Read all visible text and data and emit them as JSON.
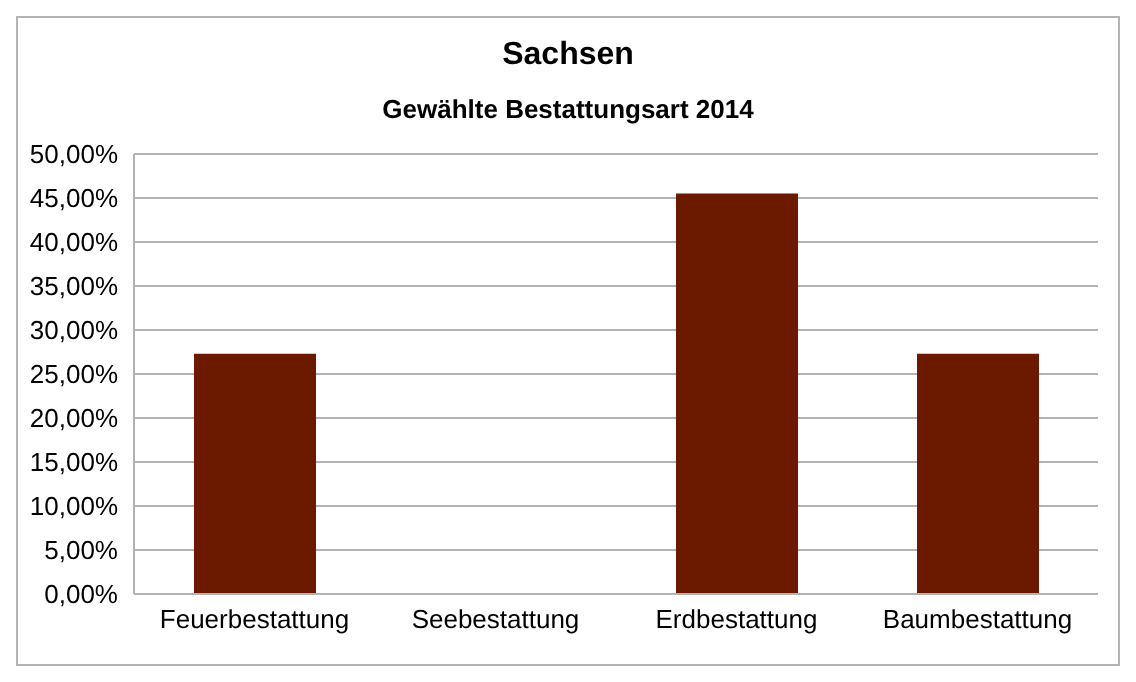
{
  "chart_data": {
    "type": "bar",
    "title": "Sachsen",
    "subtitle": "Gewählte Bestattungsart 2014",
    "categories": [
      "Feuerbestattung",
      "Seebestattung",
      "Erdbestattung",
      "Baumbestattung"
    ],
    "values": [
      27.3,
      0,
      45.5,
      27.3
    ],
    "color": "#6b1a00",
    "ylim": [
      0,
      50
    ],
    "yticks": [
      {
        "value": 0,
        "label": "0,00%"
      },
      {
        "value": 5,
        "label": "5,00%"
      },
      {
        "value": 10,
        "label": "10,00%"
      },
      {
        "value": 15,
        "label": "15,00%"
      },
      {
        "value": 20,
        "label": "20,00%"
      },
      {
        "value": 25,
        "label": "25,00%"
      },
      {
        "value": 30,
        "label": "30,00%"
      },
      {
        "value": 35,
        "label": "35,00%"
      },
      {
        "value": 40,
        "label": "40,00%"
      },
      {
        "value": 45,
        "label": "45,00%"
      },
      {
        "value": 50,
        "label": "50,00%"
      }
    ],
    "grid": "y",
    "legend": false
  }
}
